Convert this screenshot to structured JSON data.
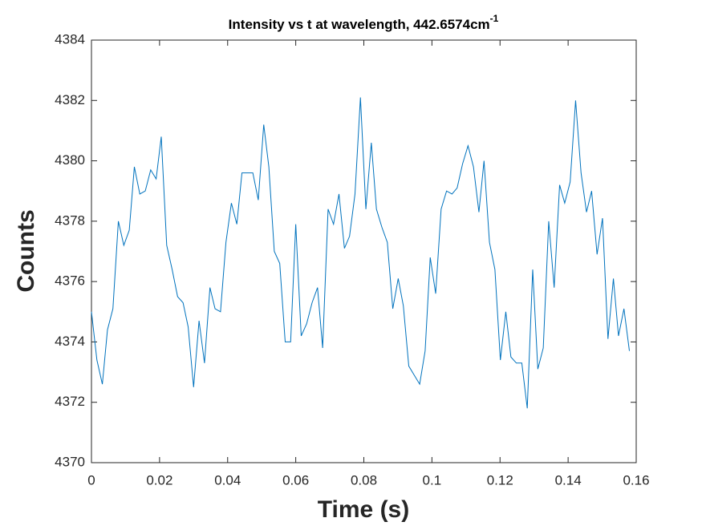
{
  "chart_data": {
    "type": "line",
    "title": "Intensity vs t at wavelength, 442.6574cm",
    "title_superscript": "-1",
    "xlabel": "Time (s)",
    "ylabel": "Counts",
    "color": "#0072bd",
    "x": [
      0,
      0.0016,
      0.0032,
      0.0047,
      0.0063,
      0.0079,
      0.0095,
      0.0111,
      0.0126,
      0.0142,
      0.0158,
      0.0174,
      0.019,
      0.0205,
      0.0221,
      0.0237,
      0.0253,
      0.0269,
      0.0284,
      0.03,
      0.0316,
      0.0332,
      0.0348,
      0.0363,
      0.0379,
      0.0395,
      0.0411,
      0.0427,
      0.0442,
      0.0458,
      0.0474,
      0.049,
      0.0506,
      0.0521,
      0.0537,
      0.0553,
      0.0569,
      0.0585,
      0.06,
      0.0616,
      0.0632,
      0.0648,
      0.0664,
      0.0679,
      0.0695,
      0.0711,
      0.0727,
      0.0743,
      0.0758,
      0.0774,
      0.079,
      0.0806,
      0.0822,
      0.0837,
      0.0853,
      0.0869,
      0.0885,
      0.0901,
      0.0916,
      0.0932,
      0.0948,
      0.0964,
      0.098,
      0.0995,
      0.1011,
      0.1027,
      0.1043,
      0.1059,
      0.1074,
      0.109,
      0.1106,
      0.1122,
      0.1138,
      0.1153,
      0.1169,
      0.1185,
      0.1201,
      0.1217,
      0.1232,
      0.1248,
      0.1264,
      0.128,
      0.1296,
      0.1311,
      0.1327,
      0.1343,
      0.1359,
      0.1375,
      0.139,
      0.1406,
      0.1422,
      0.1438,
      0.1454,
      0.1469,
      0.1485,
      0.1501,
      0.1517,
      0.1533,
      0.1548,
      0.1564,
      0.158
    ],
    "values": [
      4375.0,
      4373.4,
      4372.6,
      4374.4,
      4375.1,
      4378.0,
      4377.2,
      4377.7,
      4379.8,
      4378.9,
      4379.0,
      4379.7,
      4379.4,
      4380.8,
      4377.2,
      4376.4,
      4375.5,
      4375.3,
      4374.5,
      4372.5,
      4374.7,
      4373.3,
      4375.8,
      4375.1,
      4375.0,
      4377.3,
      4378.6,
      4377.9,
      4379.6,
      4379.6,
      4379.6,
      4378.7,
      4381.2,
      4379.8,
      4377.0,
      4376.6,
      4374.0,
      4374.0,
      4377.9,
      4374.2,
      4374.6,
      4375.3,
      4375.8,
      4373.8,
      4378.4,
      4377.9,
      4378.9,
      4377.1,
      4377.5,
      4378.9,
      4382.1,
      4378.4,
      4380.6,
      4378.4,
      4377.8,
      4377.3,
      4375.1,
      4376.1,
      4375.2,
      4373.2,
      4372.9,
      4372.6,
      4373.7,
      4376.8,
      4375.6,
      4378.4,
      4379.0,
      4378.9,
      4379.1,
      4379.9,
      4380.5,
      4379.8,
      4378.3,
      4380.0,
      4377.3,
      4376.4,
      4373.4,
      4375.0,
      4373.5,
      4373.3,
      4373.3,
      4371.8,
      4376.4,
      4373.1,
      4373.8,
      4378.0,
      4375.8,
      4379.2,
      4378.6,
      4379.3,
      4382.0,
      4379.6,
      4378.3,
      4379.0,
      4376.9,
      4378.1,
      4374.1,
      4376.1,
      4374.2,
      4375.1,
      4373.7
    ],
    "xlim": [
      0,
      0.16
    ],
    "xticks": [
      0,
      0.02,
      0.04,
      0.06,
      0.08,
      0.1,
      0.12,
      0.14,
      0.16
    ],
    "ylim": [
      4370,
      4384
    ],
    "yticks": [
      4370,
      4372,
      4374,
      4376,
      4378,
      4380,
      4382,
      4384
    ]
  }
}
